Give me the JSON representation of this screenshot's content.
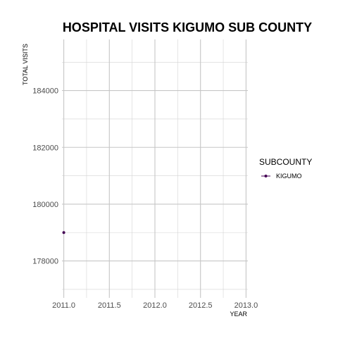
{
  "chart_data": {
    "type": "line",
    "title": "HOSPITAL VISITS KIGUMO SUB COUNTY",
    "xlabel": "YEAR",
    "ylabel": "TOTAL VISITS",
    "xlim": [
      2010.98,
      2013.02
    ],
    "ylim": [
      176700,
      185800
    ],
    "x_ticks": [
      2011.0,
      2011.5,
      2012.0,
      2012.5,
      2013.0
    ],
    "x_tick_labels": [
      "2011.0",
      "2011.5",
      "2012.0",
      "2012.5",
      "2013.0"
    ],
    "y_ticks": [
      178000,
      180000,
      182000,
      184000
    ],
    "y_tick_labels": [
      "178000",
      "180000",
      "182000",
      "184000"
    ],
    "grid": true,
    "legend": {
      "title": "SUBCOUNTY",
      "placement": "right"
    },
    "series": [
      {
        "name": "KIGUMO",
        "color": "#440154",
        "x": [
          2011.0
        ],
        "y": [
          179000
        ]
      }
    ]
  }
}
